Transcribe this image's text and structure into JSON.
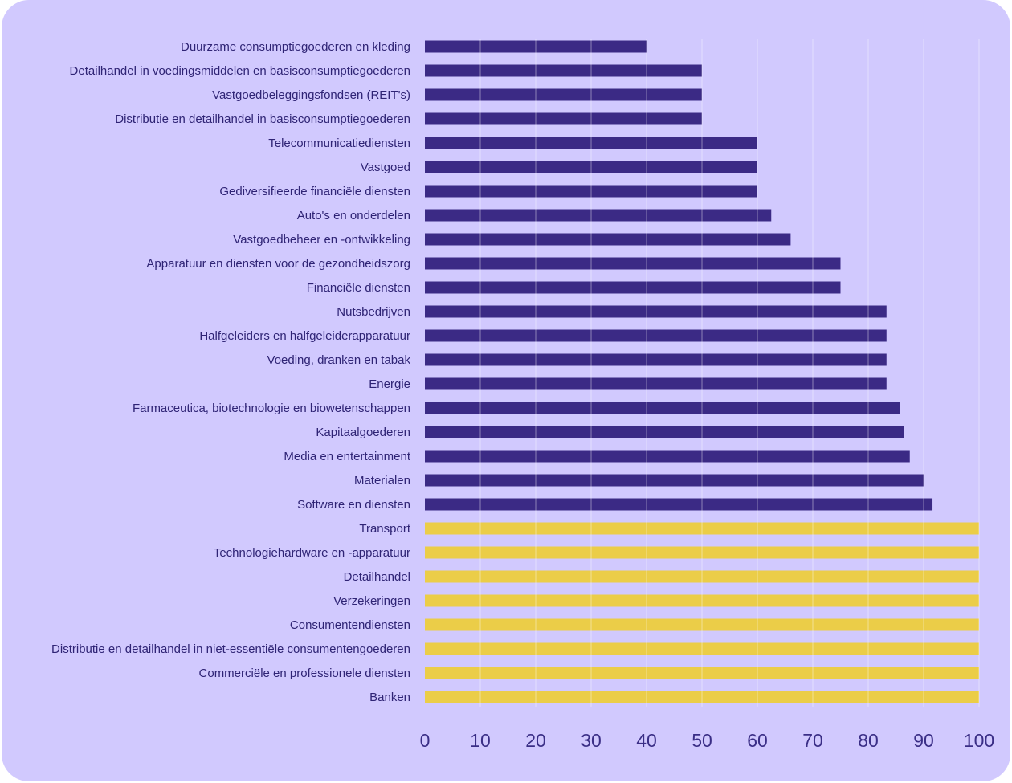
{
  "chart_data": {
    "type": "bar",
    "orientation": "horizontal",
    "title": "",
    "xlabel": "",
    "ylabel": "",
    "xlim": [
      0,
      100
    ],
    "x_ticks": [
      0,
      10,
      20,
      30,
      40,
      50,
      60,
      70,
      80,
      90,
      100
    ],
    "grid": true,
    "colors": {
      "below_100": "#3b2a85",
      "at_100": "#ebcd48",
      "background": "#d1c9fe",
      "text": "#2f2475"
    },
    "categories": [
      "Duurzame consumptiegoederen en kleding",
      "Detailhandel in voedingsmiddelen en basisconsumptiegoederen",
      "Vastgoedbeleggingsfondsen (REIT's)",
      "Distributie en detailhandel in basisconsumptiegoederen",
      "Telecommunicatiediensten",
      "Vastgoed",
      "Gediversifieerde financiële diensten",
      "Auto's en onderdelen",
      "Vastgoedbeheer en -ontwikkeling",
      "Apparatuur en diensten voor de gezondheidszorg",
      "Financiële diensten",
      "Nutsbedrijven",
      "Halfgeleiders en halfgeleiderapparatuur",
      "Voeding, dranken en tabak",
      "Energie",
      "Farmaceutica, biotechnologie en biowetenschappen",
      "Kapitaalgoederen",
      "Media en entertainment",
      "Materialen",
      "Software en diensten",
      "Transport",
      "Technologiehardware en -apparatuur",
      "Detailhandel",
      "Verzekeringen",
      "Consumentendiensten",
      "Distributie en detailhandel in niet-essentiële consumentengoederen",
      "Commerciële en professionele diensten",
      "Banken"
    ],
    "values": [
      40,
      50,
      50,
      50,
      60,
      60,
      60,
      62.5,
      66,
      75,
      75,
      83.3,
      83.3,
      83.3,
      83.3,
      85.7,
      86.5,
      87.5,
      90,
      91.6,
      100,
      100,
      100,
      100,
      100,
      100,
      100,
      100
    ]
  }
}
